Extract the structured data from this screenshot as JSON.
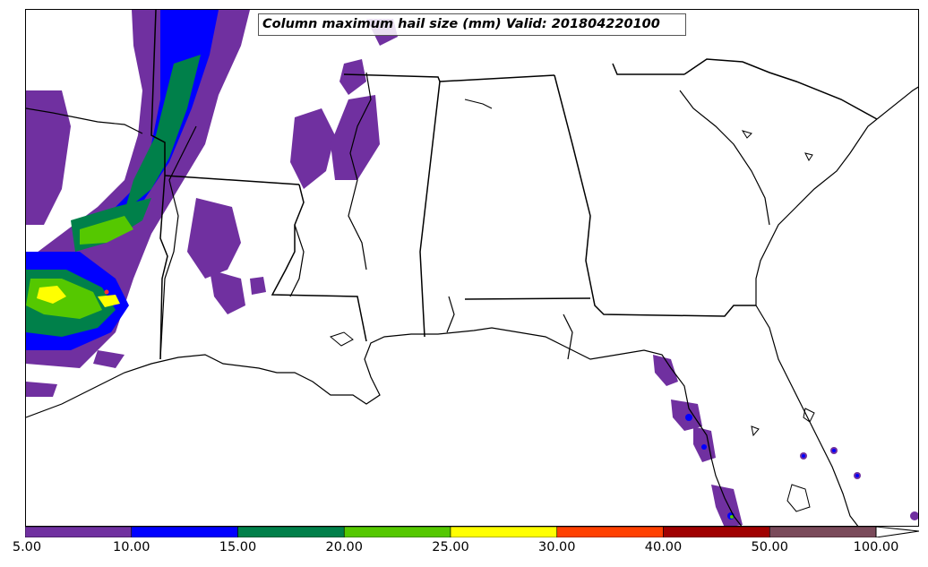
{
  "title": "Column maximum hail size (mm) Valid: 201804220100",
  "colorbar": {
    "ticks": [
      "5.00",
      "10.00",
      "15.00",
      "20.00",
      "25.00",
      "30.00",
      "40.00",
      "50.00",
      "100.00"
    ],
    "colors": [
      "#7030a0",
      "#0000ff",
      "#00804a",
      "#55c800",
      "#ffff00",
      "#ff4000",
      "#a00000",
      "#7a4a5a"
    ]
  },
  "legend_colors": {
    "purple": "#7030a0",
    "blue": "#0000ff",
    "green": "#00804a",
    "lightgreen": "#55c800",
    "yellow": "#ffff00",
    "red": "#ff3030"
  }
}
